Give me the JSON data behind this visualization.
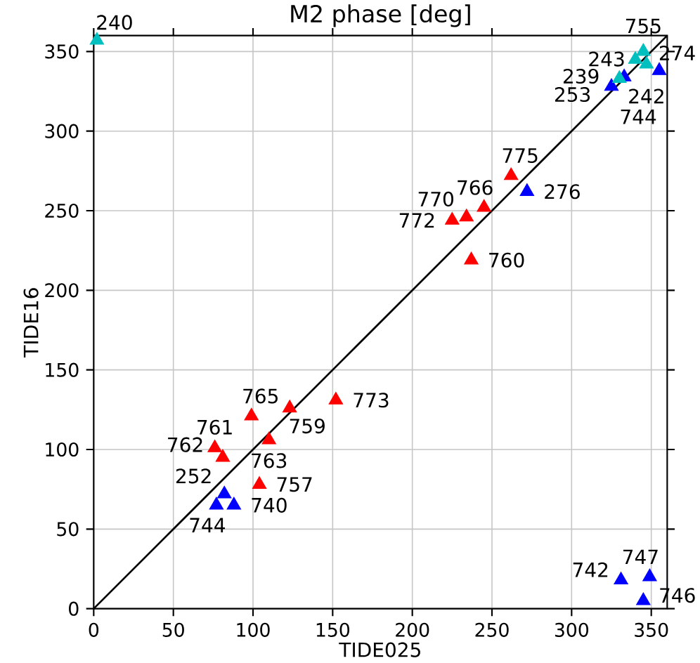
{
  "chart_data": {
    "type": "scatter",
    "title": "M2 phase [deg]",
    "xlabel": "TIDE025",
    "ylabel": "TIDE16",
    "xlim": [
      0,
      360
    ],
    "ylim": [
      0,
      360
    ],
    "xticks": [
      0,
      50,
      100,
      150,
      200,
      250,
      300,
      350
    ],
    "yticks": [
      0,
      50,
      100,
      150,
      200,
      250,
      300,
      350
    ],
    "grid": true,
    "marker": "triangle",
    "series": [
      {
        "type": "line",
        "color": "#000000",
        "marker": "none",
        "x": [
          0,
          360
        ],
        "values": [
          0,
          360
        ]
      },
      {
        "color": "#ff0000",
        "x": [
          262,
          245,
          234,
          225,
          237,
          152,
          123,
          99,
          110,
          76,
          81,
          104
        ],
        "values": [
          272,
          252,
          246,
          244,
          219,
          131,
          126,
          121,
          106,
          101,
          95,
          78
        ]
      },
      {
        "color": "#0000ff",
        "x": [
          272,
          82,
          77,
          88,
          349,
          331,
          345,
          325,
          355,
          333
        ],
        "values": [
          262,
          72,
          65,
          65,
          20,
          18,
          5,
          328,
          338,
          334
        ]
      },
      {
        "color": "#00bfbf",
        "x": [
          2,
          345,
          340,
          347,
          330
        ],
        "values": [
          357,
          350,
          345,
          342,
          333
        ]
      }
    ],
    "annotations": [
      {
        "text": "775",
        "x": 262,
        "y": 272
      },
      {
        "text": "766",
        "x": 245,
        "y": 252
      },
      {
        "text": "770",
        "x": 234,
        "y": 246
      },
      {
        "text": "772",
        "x": 225,
        "y": 244
      },
      {
        "text": "760",
        "x": 237,
        "y": 219
      },
      {
        "text": "773",
        "x": 152,
        "y": 131
      },
      {
        "text": "759",
        "x": 123,
        "y": 126
      },
      {
        "text": "765",
        "x": 99,
        "y": 121
      },
      {
        "text": "763",
        "x": 110,
        "y": 106
      },
      {
        "text": "761",
        "x": 76,
        "y": 101
      },
      {
        "text": "762",
        "x": 81,
        "y": 95
      },
      {
        "text": "757",
        "x": 104,
        "y": 78
      },
      {
        "text": "276",
        "x": 272,
        "y": 262
      },
      {
        "text": "252",
        "x": 82,
        "y": 72
      },
      {
        "text": "744",
        "x": 77,
        "y": 65
      },
      {
        "text": "740",
        "x": 88,
        "y": 65
      },
      {
        "text": "747",
        "x": 349,
        "y": 20
      },
      {
        "text": "742",
        "x": 331,
        "y": 18
      },
      {
        "text": "746",
        "x": 345,
        "y": 5
      },
      {
        "text": "239",
        "x": 325,
        "y": 328
      },
      {
        "text": "744",
        "x": 355,
        "y": 338
      },
      {
        "text": "243",
        "x": 333,
        "y": 334
      },
      {
        "text": "240",
        "x": 2,
        "y": 357
      },
      {
        "text": "755",
        "x": 345,
        "y": 350
      },
      {
        "text": "274",
        "x": 340,
        "y": 345
      },
      {
        "text": "242",
        "x": 347,
        "y": 342
      },
      {
        "text": "253",
        "x": 330,
        "y": 333
      }
    ]
  }
}
